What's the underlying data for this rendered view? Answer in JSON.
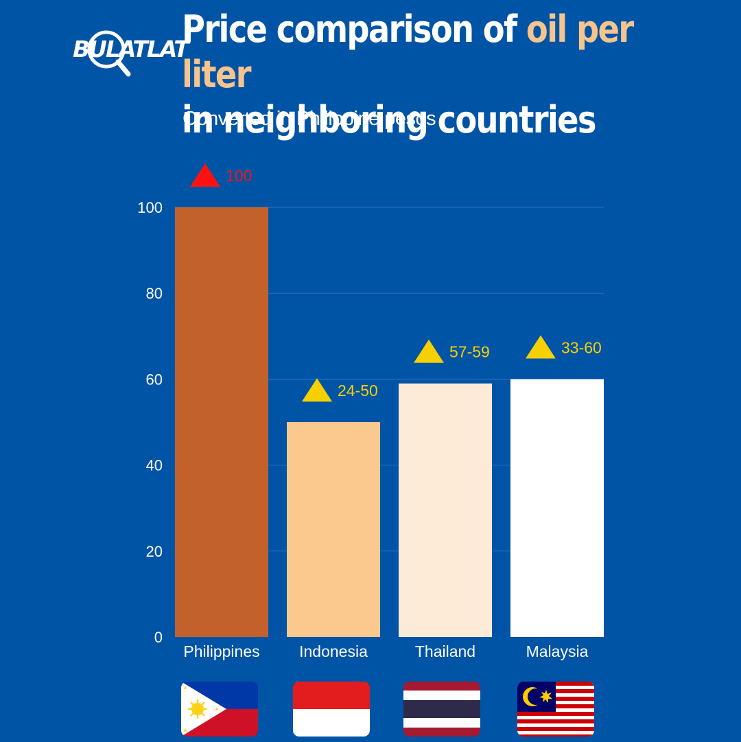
{
  "logo": {
    "text": "BULATLAT"
  },
  "title": {
    "part1": "Price comparison of ",
    "highlight": "oil per liter",
    "part2": "in neighboring countries"
  },
  "subtitle": "Converted in Philippine pesos",
  "colors": {
    "background": "#0054a6",
    "highlight": "#f6c48d",
    "indicator_red": "#ff1111",
    "indicator_yellow": "#f7d000",
    "gridline": "#2a6fc0"
  },
  "chart_data": {
    "type": "bar",
    "categories": [
      "Philippines",
      "Indonesia",
      "Thailand",
      "Malaysia"
    ],
    "values": [
      100,
      50,
      59,
      60
    ],
    "value_labels": [
      "100",
      "24-50",
      "57-59",
      "33-60"
    ],
    "label_indicator": [
      "up-triangle-red",
      "up-triangle-yellow",
      "up-triangle-yellow",
      "up-triangle-yellow"
    ],
    "bar_colors": [
      "#c2612c",
      "#fbc98d",
      "#fdebd7",
      "#ffffff"
    ],
    "y_ticks": [
      0,
      20,
      40,
      60,
      80,
      100
    ],
    "ylim": [
      0,
      100
    ],
    "grid": true,
    "xlabel": "",
    "ylabel": ""
  },
  "flags": [
    "philippines-flag",
    "indonesia-flag",
    "thailand-flag",
    "malaysia-flag"
  ]
}
